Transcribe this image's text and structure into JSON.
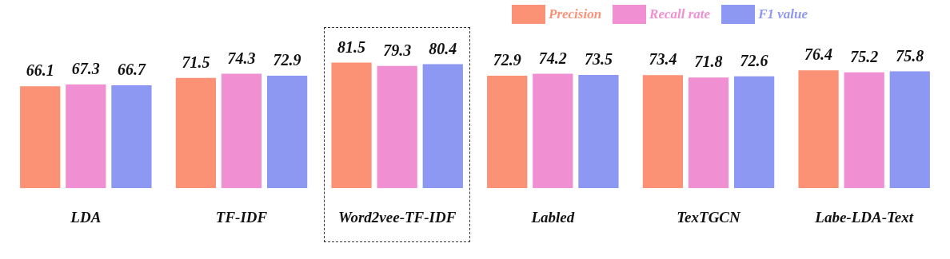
{
  "chart_data": {
    "type": "bar",
    "categories": [
      "LDA",
      "TF-IDF",
      "Word2vee-TF-IDF",
      "Labled",
      "TexTGCN",
      "Labe-LDA-Text"
    ],
    "series": [
      {
        "name": "Precision",
        "color": "#fb9276",
        "values": [
          66.1,
          71.5,
          81.5,
          72.9,
          73.4,
          76.4
        ]
      },
      {
        "name": "Recall rate",
        "color": "#f08fd2",
        "values": [
          67.3,
          74.3,
          79.3,
          74.2,
          71.8,
          75.2
        ]
      },
      {
        "name": "F1 value",
        "color": "#8d98f2",
        "values": [
          66.7,
          72.9,
          80.4,
          73.5,
          72.6,
          75.8
        ]
      }
    ],
    "data_labels": true,
    "grid": false,
    "legend": "top right"
  }
}
